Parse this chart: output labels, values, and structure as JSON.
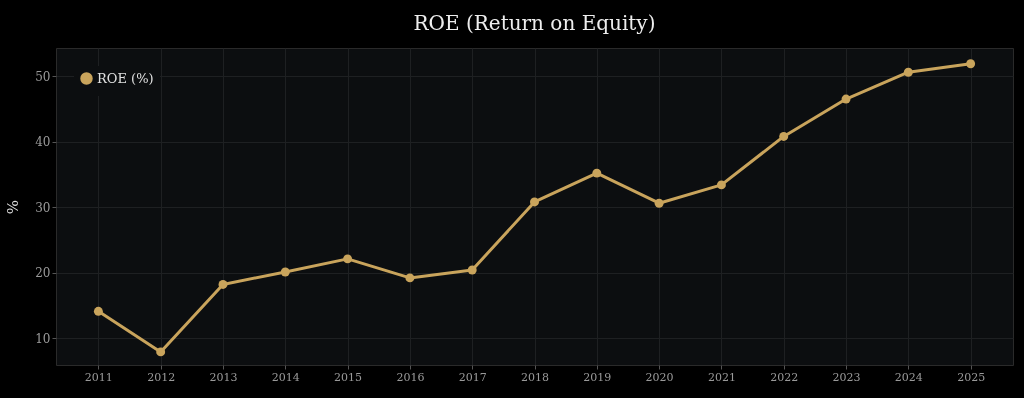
{
  "chart_data": {
    "type": "line",
    "title": "ROE (Return on Equity)",
    "ylabel": "%",
    "categories": [
      "2011",
      "2012",
      "2013",
      "2014",
      "2015",
      "2016",
      "2017",
      "2018",
      "2019",
      "2020",
      "2021",
      "2022",
      "2023",
      "2024",
      "2025"
    ],
    "series": [
      {
        "name": "ROE (%)",
        "color": "#c9a45c",
        "values": [
          14.1,
          7.9,
          18.2,
          20.1,
          22.1,
          19.2,
          20.4,
          30.8,
          35.2,
          30.6,
          33.4,
          40.8,
          46.5,
          50.6,
          51.9
        ]
      }
    ],
    "ylim": [
      5.9,
      54.3
    ],
    "yticks": [
      10,
      20,
      30,
      40,
      50
    ],
    "grid": true,
    "legend": "top left",
    "marker": "circle",
    "line_style": "solid"
  }
}
